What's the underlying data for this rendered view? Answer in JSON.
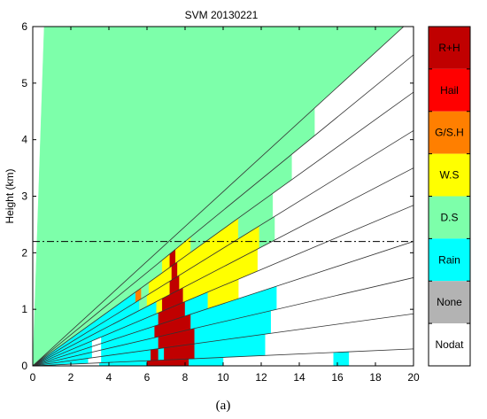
{
  "caption": "(a)",
  "chart_data": {
    "type": "heatmap",
    "title": "SVM 20130221",
    "xlabel": "",
    "ylabel": "Height (km)",
    "xlim": [
      0,
      20
    ],
    "ylim": [
      0,
      6
    ],
    "xticks": [
      0,
      2,
      4,
      6,
      8,
      10,
      12,
      14,
      16,
      18,
      20
    ],
    "yticks": [
      0,
      1,
      2,
      3,
      4,
      5,
      6
    ],
    "grid": false,
    "reference_line": {
      "style": "dash-dot",
      "y": 2.2
    },
    "beam_slopes": [
      0.015,
      0.046,
      0.078,
      0.11,
      0.142,
      0.175,
      0.208,
      0.242,
      0.275,
      0.308
    ],
    "colorbar": {
      "position": "right",
      "classes": [
        {
          "code": 7,
          "label": "R+H",
          "color": "#c00000"
        },
        {
          "code": 6,
          "label": "Hail",
          "color": "#ff0000"
        },
        {
          "code": 5,
          "label": "G/S.H",
          "color": "#ff7f00"
        },
        {
          "code": 4,
          "label": "W.S",
          "color": "#ffff00"
        },
        {
          "code": 3,
          "label": "D.S",
          "color": "#7dffaa"
        },
        {
          "code": 2,
          "label": "Rain",
          "color": "#00ffff"
        },
        {
          "code": 1,
          "label": "None",
          "color": "#b3b3b3"
        },
        {
          "code": 0,
          "label": "Nodat",
          "color": "#ffffff"
        }
      ]
    },
    "segments": [
      {
        "beam": 0,
        "x0": 0,
        "x1": 1.2,
        "cls": 2
      },
      {
        "beam": 0,
        "x0": 3.5,
        "x1": 6.0,
        "cls": 2
      },
      {
        "beam": 0,
        "x0": 6.0,
        "x1": 8.2,
        "cls": 7
      },
      {
        "beam": 0,
        "x0": 8.2,
        "x1": 10.0,
        "cls": 2
      },
      {
        "beam": 0,
        "x0": 15.8,
        "x1": 16.6,
        "cls": 2
      },
      {
        "beam": 1,
        "x0": 0,
        "x1": 2.9,
        "cls": 2
      },
      {
        "beam": 1,
        "x0": 3.6,
        "x1": 6.2,
        "cls": 2
      },
      {
        "beam": 1,
        "x0": 6.2,
        "x1": 6.6,
        "cls": 7
      },
      {
        "beam": 1,
        "x0": 6.6,
        "x1": 6.9,
        "cls": 2
      },
      {
        "beam": 1,
        "x0": 6.9,
        "x1": 8.5,
        "cls": 7
      },
      {
        "beam": 1,
        "x0": 8.5,
        "x1": 12.2,
        "cls": 2
      },
      {
        "beam": 2,
        "x0": 0,
        "x1": 3.1,
        "cls": 2
      },
      {
        "beam": 2,
        "x0": 3.6,
        "x1": 6.6,
        "cls": 2
      },
      {
        "beam": 2,
        "x0": 6.6,
        "x1": 8.5,
        "cls": 7
      },
      {
        "beam": 2,
        "x0": 8.5,
        "x1": 12.5,
        "cls": 2
      },
      {
        "beam": 3,
        "x0": 0,
        "x1": 3.1,
        "cls": 2
      },
      {
        "beam": 3,
        "x0": 3.6,
        "x1": 6.4,
        "cls": 2
      },
      {
        "beam": 3,
        "x0": 6.4,
        "x1": 8.3,
        "cls": 7
      },
      {
        "beam": 3,
        "x0": 8.3,
        "x1": 12.8,
        "cls": 2
      },
      {
        "beam": 4,
        "x0": 0,
        "x1": 3.1,
        "cls": 2
      },
      {
        "beam": 4,
        "x0": 3.6,
        "x1": 6.6,
        "cls": 2
      },
      {
        "beam": 4,
        "x0": 6.6,
        "x1": 8.0,
        "cls": 7
      },
      {
        "beam": 4,
        "x0": 8.0,
        "x1": 9.2,
        "cls": 2
      },
      {
        "beam": 4,
        "x0": 9.2,
        "x1": 10.8,
        "cls": 4
      },
      {
        "beam": 5,
        "x0": 0,
        "x1": 6.5,
        "cls": 2
      },
      {
        "beam": 5,
        "x0": 6.5,
        "x1": 6.8,
        "cls": 4
      },
      {
        "beam": 5,
        "x0": 6.8,
        "x1": 7.9,
        "cls": 7
      },
      {
        "beam": 5,
        "x0": 7.9,
        "x1": 11.8,
        "cls": 4
      },
      {
        "beam": 6,
        "x0": 0,
        "x1": 5.6,
        "cls": 2
      },
      {
        "beam": 6,
        "x0": 5.6,
        "x1": 6.0,
        "cls": 3
      },
      {
        "beam": 6,
        "x0": 6.0,
        "x1": 7.2,
        "cls": 4
      },
      {
        "beam": 6,
        "x0": 7.2,
        "x1": 7.7,
        "cls": 7
      },
      {
        "beam": 6,
        "x0": 7.7,
        "x1": 11.9,
        "cls": 4
      },
      {
        "beam": 6,
        "x0": 11.9,
        "x1": 12.7,
        "cls": 3
      },
      {
        "beam": 7,
        "x0": 0,
        "x1": 5.4,
        "cls": 2
      },
      {
        "beam": 7,
        "x0": 5.4,
        "x1": 5.7,
        "cls": 5
      },
      {
        "beam": 7,
        "x0": 5.7,
        "x1": 6.1,
        "cls": 3
      },
      {
        "beam": 7,
        "x0": 6.1,
        "x1": 7.3,
        "cls": 4
      },
      {
        "beam": 7,
        "x0": 7.3,
        "x1": 7.6,
        "cls": 7
      },
      {
        "beam": 7,
        "x0": 7.6,
        "x1": 10.8,
        "cls": 4
      },
      {
        "beam": 7,
        "x0": 10.8,
        "x1": 12.6,
        "cls": 3
      },
      {
        "beam": 8,
        "x0": 0,
        "x1": 6.8,
        "cls": 3
      },
      {
        "beam": 8,
        "x0": 6.8,
        "x1": 7.2,
        "cls": 4
      },
      {
        "beam": 8,
        "x0": 7.2,
        "x1": 7.5,
        "cls": 7
      },
      {
        "beam": 8,
        "x0": 7.5,
        "x1": 8.3,
        "cls": 4
      },
      {
        "beam": 8,
        "x0": 8.3,
        "x1": 13.6,
        "cls": 3
      },
      {
        "beam": 9,
        "x0": 0,
        "x1": 14.8,
        "cls": 3
      },
      {
        "beam": 10,
        "x0": 0,
        "x1": 20,
        "cls": 3
      }
    ]
  }
}
